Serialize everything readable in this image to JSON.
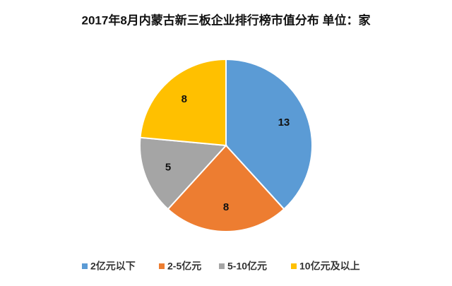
{
  "chart_data": {
    "type": "pie",
    "title": "2017年8月内蒙古新三板企业排行榜市值分布 单位：家",
    "categories": [
      "2亿元以下",
      "2-5亿元",
      "5-10亿元",
      "10亿元及以上"
    ],
    "values": [
      13,
      8,
      5,
      8
    ],
    "colors": [
      "#5b9bd5",
      "#ed7d31",
      "#a5a5a5",
      "#ffc000"
    ],
    "legend": "bottom"
  }
}
